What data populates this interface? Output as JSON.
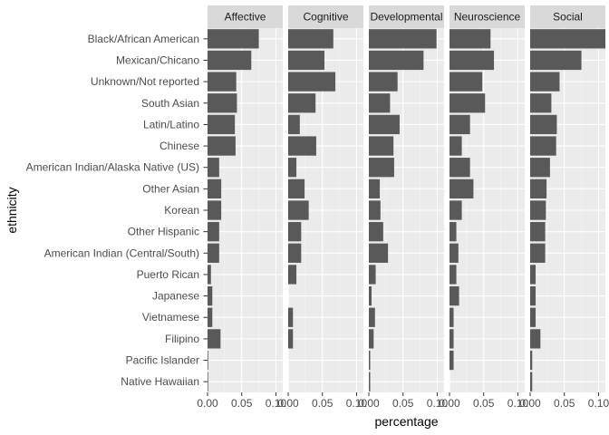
{
  "chart_data": {
    "type": "bar",
    "orientation": "horizontal",
    "faceted": true,
    "xlabel": "percentage",
    "ylabel": "ethnicity",
    "xlim": [
      0,
      0.11
    ],
    "x_ticks": [
      0.0,
      0.05,
      0.1
    ],
    "x_tick_labels": [
      "0.00",
      "0.05",
      "0.10"
    ],
    "grid": true,
    "categories": [
      "Black/African American",
      "Mexican/Chicano",
      "Unknown/Not reported",
      "South Asian",
      "Latin/Latino",
      "Chinese",
      "American Indian/Alaska Native (US)",
      "Other Asian",
      "Korean",
      "Other Hispanic",
      "American Indian (Central/South)",
      "Puerto Rican",
      "Japanese",
      "Vietnamese",
      "Filipino",
      "Pacific Islander",
      "Native Hawaiian"
    ],
    "panels": [
      {
        "name": "Affective",
        "values": [
          0.075,
          0.064,
          0.042,
          0.043,
          0.04,
          0.041,
          0.017,
          0.02,
          0.02,
          0.017,
          0.017,
          0.005,
          0.007,
          0.007,
          0.019,
          0.001,
          0.001
        ]
      },
      {
        "name": "Cognitive",
        "values": [
          0.066,
          0.053,
          0.069,
          0.04,
          0.017,
          0.041,
          0.012,
          0.024,
          0.03,
          0.019,
          0.019,
          0.012,
          0.0,
          0.007,
          0.007,
          0.0,
          0.0
        ]
      },
      {
        "name": "Developmental",
        "values": [
          0.099,
          0.08,
          0.042,
          0.031,
          0.045,
          0.036,
          0.037,
          0.016,
          0.017,
          0.021,
          0.028,
          0.01,
          0.004,
          0.009,
          0.007,
          0.002,
          0.002
        ]
      },
      {
        "name": "Neuroscience",
        "values": [
          0.06,
          0.065,
          0.048,
          0.052,
          0.03,
          0.018,
          0.03,
          0.035,
          0.018,
          0.01,
          0.013,
          0.01,
          0.014,
          0.006,
          0.006,
          0.006,
          0.0
        ]
      },
      {
        "name": "Social",
        "values": [
          0.114,
          0.075,
          0.043,
          0.031,
          0.039,
          0.038,
          0.029,
          0.024,
          0.023,
          0.022,
          0.022,
          0.008,
          0.008,
          0.008,
          0.015,
          0.003,
          0.003
        ]
      }
    ],
    "colors": {
      "bar": "#595959",
      "panel_background": "#ebebeb",
      "strip_background": "#d9d9d9",
      "grid_major": "#ffffff",
      "grid_minor": "#f5f5f5"
    }
  }
}
